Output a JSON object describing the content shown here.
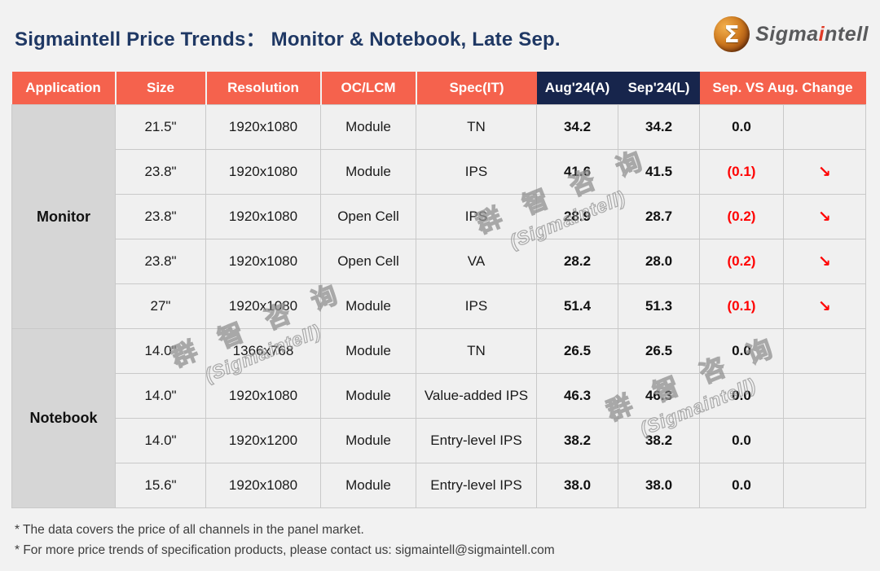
{
  "header": {
    "title": "Sigmaintell Price Trends：  Monitor & Notebook, Late Sep.",
    "title_color": "#1F3864"
  },
  "logo": {
    "sigma": "Σ",
    "brand_pre": "Sigma",
    "brand_accent": "i",
    "brand_post": "ntell"
  },
  "colors": {
    "header_coral": "#F5624D",
    "header_navy": "#17254C",
    "app_cell_gray": "#D6D6D6",
    "cell_bg": "#F0F0F0",
    "negative_red": "#FF0000",
    "page_bg": "#F2F2F2"
  },
  "table": {
    "columns": [
      "Application",
      "Size",
      "Resolution",
      "OC/LCM",
      "Spec(IT)",
      "Aug'24(A)",
      "Sep'24(L)",
      "Sep. VS Aug. Change"
    ],
    "groups": [
      {
        "application": "Monitor",
        "rows": [
          {
            "size": "21.5\"",
            "resolution": "1920x1080",
            "oc_lcm": "Module",
            "spec": "TN",
            "aug": "34.2",
            "sep": "34.2",
            "change": "0.0",
            "negative": false,
            "arrow": ""
          },
          {
            "size": "23.8\"",
            "resolution": "1920x1080",
            "oc_lcm": "Module",
            "spec": "IPS",
            "aug": "41.6",
            "sep": "41.5",
            "change": "(0.1)",
            "negative": true,
            "arrow": "↘"
          },
          {
            "size": "23.8\"",
            "resolution": "1920x1080",
            "oc_lcm": "Open Cell",
            "spec": "IPS",
            "aug": "28.9",
            "sep": "28.7",
            "change": "(0.2)",
            "negative": true,
            "arrow": "↘"
          },
          {
            "size": "23.8\"",
            "resolution": "1920x1080",
            "oc_lcm": "Open Cell",
            "spec": "VA",
            "aug": "28.2",
            "sep": "28.0",
            "change": "(0.2)",
            "negative": true,
            "arrow": "↘"
          },
          {
            "size": "27\"",
            "resolution": "1920x1080",
            "oc_lcm": "Module",
            "spec": "IPS",
            "aug": "51.4",
            "sep": "51.3",
            "change": "(0.1)",
            "negative": true,
            "arrow": "↘"
          }
        ]
      },
      {
        "application": "Notebook",
        "rows": [
          {
            "size": "14.0\"",
            "resolution": "1366x768",
            "oc_lcm": "Module",
            "spec": "TN",
            "aug": "26.5",
            "sep": "26.5",
            "change": "0.0",
            "negative": false,
            "arrow": ""
          },
          {
            "size": "14.0\"",
            "resolution": "1920x1080",
            "oc_lcm": "Module",
            "spec": "Value-added IPS",
            "aug": "46.3",
            "sep": "46.3",
            "change": "0.0",
            "negative": false,
            "arrow": ""
          },
          {
            "size": "14.0\"",
            "resolution": "1920x1200",
            "oc_lcm": "Module",
            "spec": "Entry-level IPS",
            "aug": "38.2",
            "sep": "38.2",
            "change": "0.0",
            "negative": false,
            "arrow": ""
          },
          {
            "size": "15.6\"",
            "resolution": "1920x1080",
            "oc_lcm": "Module",
            "spec": "Entry-level IPS",
            "aug": "38.0",
            "sep": "38.0",
            "change": "0.0",
            "negative": false,
            "arrow": ""
          }
        ]
      }
    ]
  },
  "watermark": {
    "line1": "群 智 咨 询",
    "line2": "(Sigmaintell)"
  },
  "footnotes": [
    "* The data covers the price of all channels in the panel market.",
    "* For more price trends of specification products, please contact us: sigmaintell@sigmaintell.com"
  ]
}
